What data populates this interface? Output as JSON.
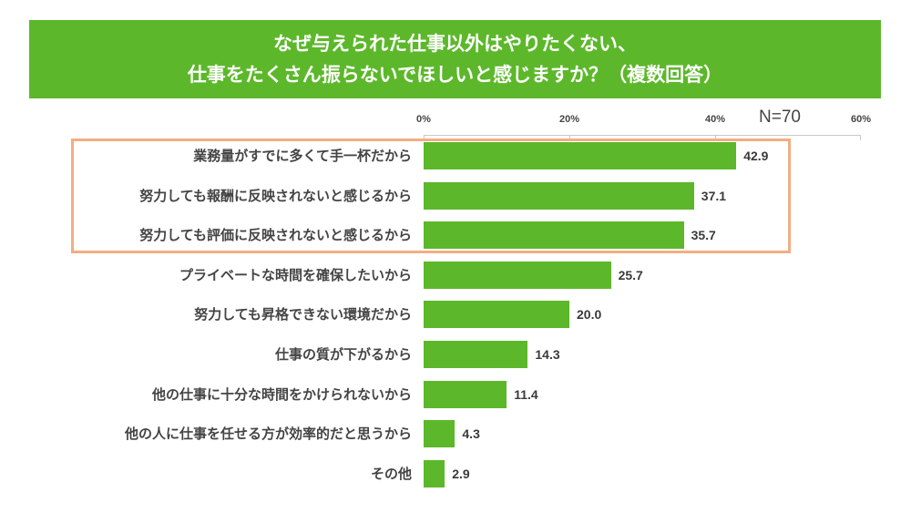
{
  "header": {
    "title_line1": "なぜ与えられた仕事以外はやりたくない、",
    "title_line2": "仕事をたくさん振らないでほしいと感じますか？（複数回答）"
  },
  "sample_size_label": "N=70",
  "colors": {
    "bar": "#5cb82a",
    "banner": "#5cb82a",
    "highlight": "#f3ad82",
    "text": "#444444"
  },
  "chart_data": {
    "type": "bar",
    "orientation": "horizontal",
    "title": "なぜ与えられた仕事以外はやりたくない、仕事をたくさん振らないでほしいと感じますか？（複数回答）",
    "xlabel": "",
    "ylabel": "",
    "xlim": [
      0,
      60
    ],
    "x_ticks": [
      "0%",
      "20%",
      "40%",
      "60%"
    ],
    "grid": false,
    "legend": null,
    "annotation": "N=70",
    "highlighted_categories": [
      0,
      1,
      2
    ],
    "categories": [
      "業務量がすでに多くて手一杯だから",
      "努力しても報酬に反映されないと感じるから",
      "努力しても評価に反映されないと感じるから",
      "プライベートな時間を確保したいから",
      "努力しても昇格できない環境だから",
      "仕事の質が下がるから",
      "他の仕事に十分な時間をかけられないから",
      "他の人に仕事を任せる方が効率的だと思うから",
      "その他"
    ],
    "values": [
      42.9,
      37.1,
      35.7,
      25.7,
      20.0,
      14.3,
      11.4,
      4.3,
      2.9
    ],
    "value_labels": [
      "42.9",
      "37.1",
      "35.7",
      "25.7",
      "20.0",
      "14.3",
      "11.4",
      "4.3",
      "2.9"
    ]
  }
}
